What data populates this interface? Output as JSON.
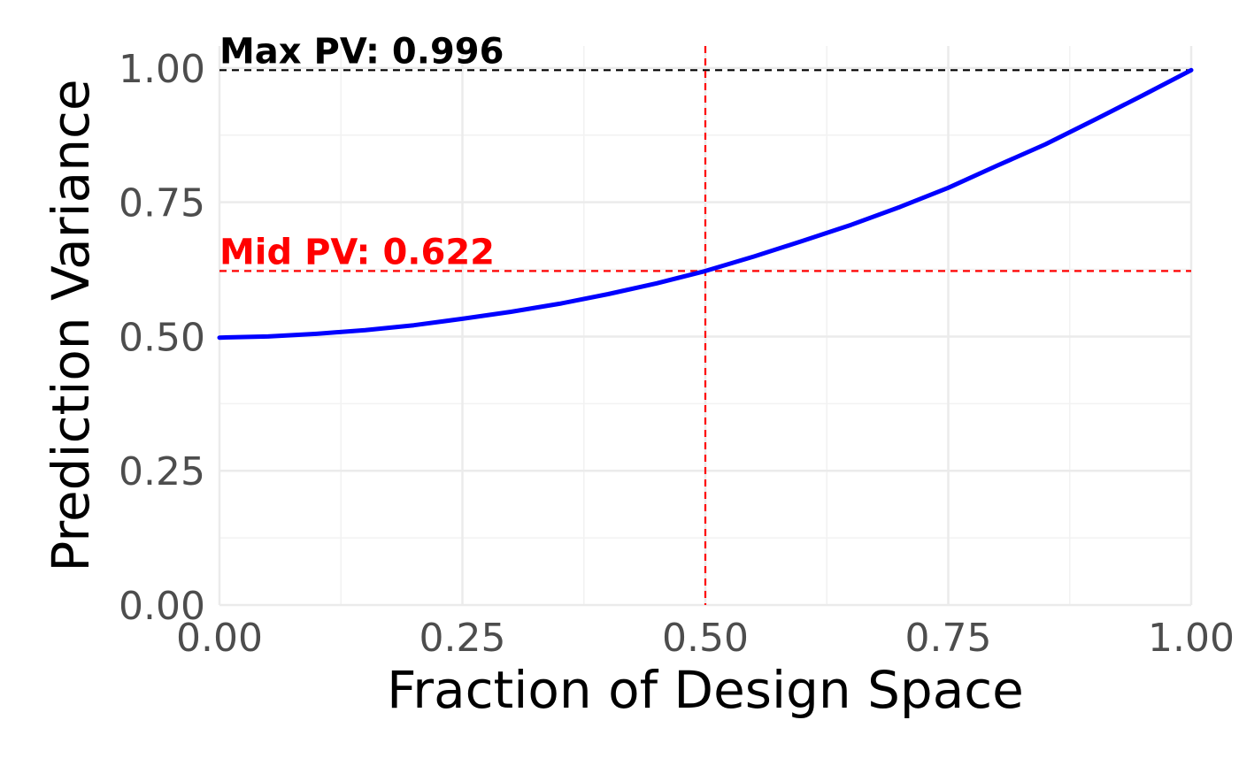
{
  "chart_data": {
    "type": "line",
    "title": "",
    "xlabel": "Fraction of Design Space",
    "ylabel": "Prediction Variance",
    "xlim": [
      0,
      1
    ],
    "ylim": [
      0,
      1
    ],
    "x_ticks": [
      0,
      0.25,
      0.5,
      0.75,
      1
    ],
    "x_tick_labels": [
      "0.00",
      "0.25",
      "0.50",
      "0.75",
      "1.00"
    ],
    "y_ticks": [
      0,
      0.25,
      0.5,
      0.75,
      1
    ],
    "y_tick_labels": [
      "0.00",
      "0.25",
      "0.50",
      "0.75",
      "1.00"
    ],
    "grid": true,
    "legend": "none",
    "series": [
      {
        "color": "#0000ff",
        "x": [
          0,
          0.05,
          0.1,
          0.15,
          0.2,
          0.25,
          0.3,
          0.35,
          0.4,
          0.45,
          0.5,
          0.55,
          0.6,
          0.65,
          0.7,
          0.75,
          0.8,
          0.85,
          0.9,
          0.95,
          1.0
        ],
        "y": [
          0.498,
          0.5,
          0.505,
          0.512,
          0.521,
          0.533,
          0.546,
          0.561,
          0.579,
          0.599,
          0.622,
          0.649,
          0.678,
          0.708,
          0.741,
          0.777,
          0.818,
          0.858,
          0.903,
          0.949,
          0.996
        ]
      }
    ],
    "reference_lines": [
      {
        "orientation": "horizontal",
        "value": 0.996,
        "color": "#000000",
        "style": "dashed"
      },
      {
        "orientation": "horizontal",
        "value": 0.622,
        "color": "#ff0000",
        "style": "dashed"
      },
      {
        "orientation": "vertical",
        "value": 0.5,
        "color": "#ff0000",
        "style": "dashed"
      }
    ],
    "annotations": [
      {
        "text": "Max PV: 0.996",
        "x": 0,
        "y": 0.996,
        "color": "#000000"
      },
      {
        "text": "Mid PV: 0.622",
        "x": 0,
        "y": 0.622,
        "color": "#ff0000"
      }
    ]
  }
}
